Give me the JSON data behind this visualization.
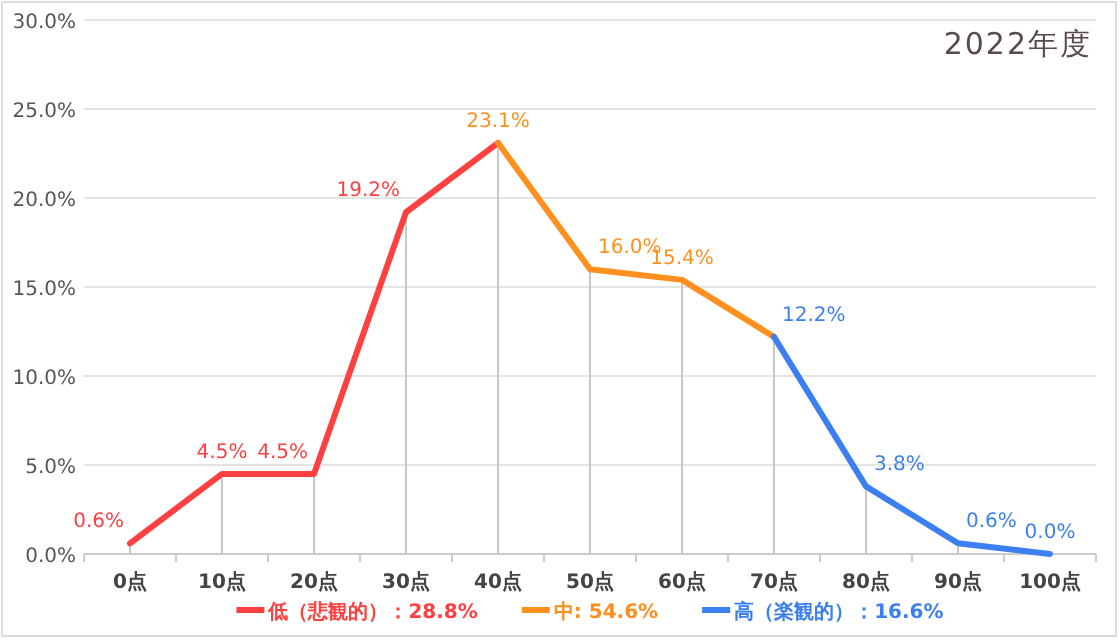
{
  "chart_data": {
    "type": "line",
    "title": "2022年度",
    "categories": [
      "0点",
      "10点",
      "20点",
      "30点",
      "40点",
      "50点",
      "60点",
      "70点",
      "80点",
      "90点",
      "100点"
    ],
    "series": [
      {
        "name": "低（悲観的）：28.8%",
        "color": "#ff4040",
        "values": [
          0.6,
          4.5,
          4.5,
          19.2,
          23.1,
          null,
          null,
          null,
          null,
          null,
          null
        ],
        "value_labels": [
          "0.6%",
          "4.5%",
          "4.5%",
          "19.2%",
          null,
          null,
          null,
          null,
          null,
          null,
          null
        ]
      },
      {
        "name": "中: 54.6%",
        "color": "#ff9020",
        "values": [
          null,
          null,
          null,
          null,
          23.1,
          16.0,
          15.4,
          12.2,
          null,
          null,
          null
        ],
        "value_labels": [
          null,
          null,
          null,
          null,
          "23.1%",
          "16.0%",
          "15.4%",
          null,
          null,
          null,
          null
        ]
      },
      {
        "name": "高（楽観的）：16.6%",
        "color": "#3b7ff0",
        "values": [
          null,
          null,
          null,
          null,
          null,
          null,
          null,
          12.2,
          3.8,
          0.6,
          0.0
        ],
        "value_labels": [
          null,
          null,
          null,
          null,
          null,
          null,
          null,
          "12.2%",
          "3.8%",
          "0.6%",
          "0.0%"
        ]
      }
    ],
    "ylim": [
      0,
      30
    ],
    "yticks": [
      {
        "value": 0,
        "label": "0.0%"
      },
      {
        "value": 5,
        "label": "5.0%"
      },
      {
        "value": 10,
        "label": "10.0%"
      },
      {
        "value": 15,
        "label": "15.0%"
      },
      {
        "value": 20,
        "label": "20.0%"
      },
      {
        "value": 25,
        "label": "25.0%"
      },
      {
        "value": 30,
        "label": "30.0%"
      }
    ],
    "grid": "y",
    "legend": "bottom",
    "marker": "none",
    "line_style": "solid"
  }
}
